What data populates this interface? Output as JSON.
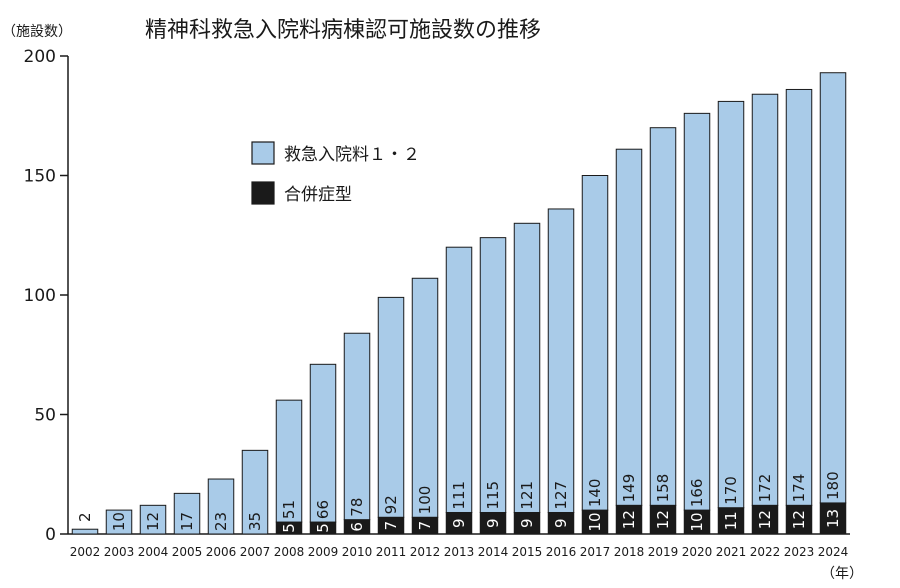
{
  "chart_data": {
    "type": "bar",
    "stacked": true,
    "title": "精神科救急入院料病棟認可施設数の推移",
    "y_unit_label": "（施設数）",
    "x_unit_label": "（年）",
    "ylim": [
      0,
      200
    ],
    "yticks": [
      0,
      50,
      100,
      150,
      200
    ],
    "grid": false,
    "legend_position": "upper-left",
    "categories": [
      "2002",
      "2003",
      "2004",
      "2005",
      "2006",
      "2007",
      "2008",
      "2009",
      "2010",
      "2011",
      "2012",
      "2013",
      "2014",
      "2015",
      "2016",
      "2017",
      "2018",
      "2019",
      "2020",
      "2021",
      "2022",
      "2023",
      "2024"
    ],
    "series": [
      {
        "name": "合併症型",
        "color": "#1a1a1a",
        "label_color": "#ffffff",
        "values": [
          0,
          0,
          0,
          0,
          0,
          0,
          5,
          5,
          6,
          7,
          7,
          9,
          9,
          9,
          9,
          10,
          12,
          12,
          10,
          11,
          12,
          12,
          13
        ]
      },
      {
        "name": "救急入院料１・２",
        "color": "#a9cbe8",
        "label_color": "#1a1a1a",
        "values": [
          2,
          10,
          12,
          17,
          23,
          35,
          51,
          66,
          78,
          92,
          100,
          111,
          115,
          121,
          127,
          140,
          149,
          158,
          166,
          170,
          172,
          174,
          180
        ]
      }
    ]
  }
}
